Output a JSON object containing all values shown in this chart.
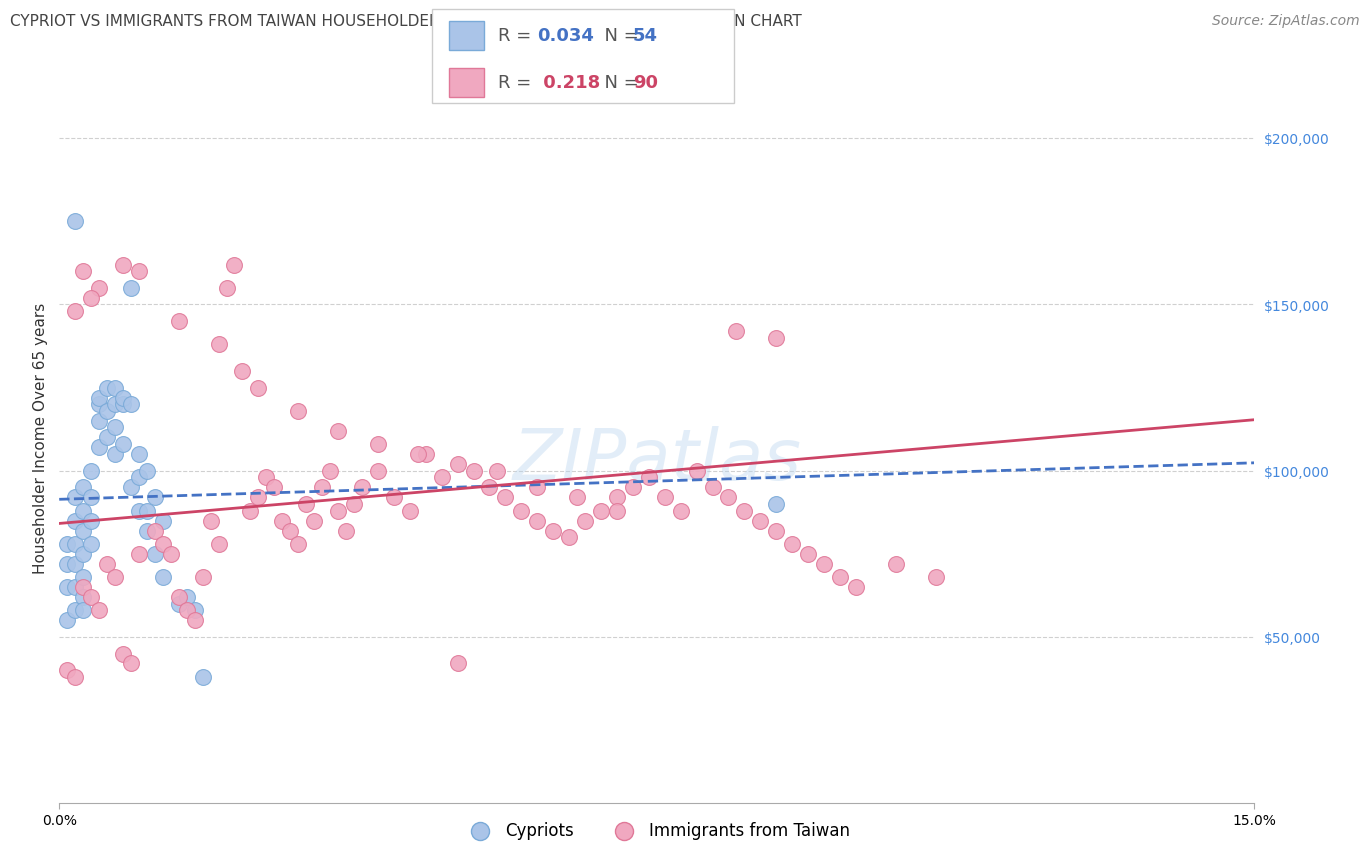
{
  "title": "CYPRIOT VS IMMIGRANTS FROM TAIWAN HOUSEHOLDER INCOME OVER 65 YEARS CORRELATION CHART",
  "source": "Source: ZipAtlas.com",
  "ylabel": "Householder Income Over 65 years",
  "xlim": [
    0.0,
    0.15
  ],
  "ylim": [
    0,
    220000
  ],
  "ytick_labels": [
    "$50,000",
    "$100,000",
    "$150,000",
    "$200,000"
  ],
  "ytick_values": [
    50000,
    100000,
    150000,
    200000
  ],
  "background_color": "#ffffff",
  "grid_color": "#d0d0d0",
  "blue_R": 0.034,
  "blue_N": 54,
  "pink_R": 0.218,
  "pink_N": 90,
  "blue_scatter_x": [
    0.001,
    0.001,
    0.001,
    0.001,
    0.002,
    0.002,
    0.002,
    0.002,
    0.002,
    0.002,
    0.003,
    0.003,
    0.003,
    0.003,
    0.003,
    0.003,
    0.003,
    0.004,
    0.004,
    0.004,
    0.004,
    0.005,
    0.005,
    0.005,
    0.005,
    0.006,
    0.006,
    0.006,
    0.007,
    0.007,
    0.007,
    0.007,
    0.008,
    0.008,
    0.008,
    0.009,
    0.009,
    0.009,
    0.01,
    0.01,
    0.01,
    0.011,
    0.011,
    0.011,
    0.012,
    0.012,
    0.013,
    0.013,
    0.015,
    0.016,
    0.017,
    0.018,
    0.09,
    0.002
  ],
  "blue_scatter_y": [
    65000,
    72000,
    78000,
    55000,
    85000,
    92000,
    78000,
    65000,
    72000,
    58000,
    88000,
    95000,
    82000,
    75000,
    68000,
    62000,
    58000,
    92000,
    100000,
    85000,
    78000,
    107000,
    115000,
    120000,
    122000,
    118000,
    125000,
    110000,
    113000,
    120000,
    125000,
    105000,
    108000,
    120000,
    122000,
    155000,
    120000,
    95000,
    88000,
    105000,
    98000,
    100000,
    88000,
    82000,
    92000,
    75000,
    85000,
    68000,
    60000,
    62000,
    58000,
    38000,
    90000,
    175000
  ],
  "pink_scatter_x": [
    0.001,
    0.002,
    0.003,
    0.004,
    0.005,
    0.006,
    0.007,
    0.008,
    0.009,
    0.01,
    0.012,
    0.013,
    0.014,
    0.015,
    0.016,
    0.017,
    0.018,
    0.019,
    0.02,
    0.021,
    0.022,
    0.023,
    0.024,
    0.025,
    0.026,
    0.027,
    0.028,
    0.029,
    0.03,
    0.031,
    0.032,
    0.033,
    0.034,
    0.035,
    0.036,
    0.037,
    0.038,
    0.04,
    0.042,
    0.044,
    0.046,
    0.048,
    0.05,
    0.052,
    0.054,
    0.056,
    0.058,
    0.06,
    0.062,
    0.064,
    0.066,
    0.068,
    0.07,
    0.072,
    0.074,
    0.076,
    0.078,
    0.08,
    0.082,
    0.084,
    0.086,
    0.088,
    0.09,
    0.092,
    0.094,
    0.096,
    0.098,
    0.1,
    0.105,
    0.11,
    0.003,
    0.005,
    0.008,
    0.01,
    0.015,
    0.02,
    0.025,
    0.03,
    0.035,
    0.04,
    0.045,
    0.05,
    0.055,
    0.06,
    0.065,
    0.07,
    0.085,
    0.09,
    0.002,
    0.004
  ],
  "pink_scatter_y": [
    40000,
    38000,
    65000,
    62000,
    58000,
    72000,
    68000,
    45000,
    42000,
    75000,
    82000,
    78000,
    75000,
    62000,
    58000,
    55000,
    68000,
    85000,
    78000,
    155000,
    162000,
    130000,
    88000,
    92000,
    98000,
    95000,
    85000,
    82000,
    78000,
    90000,
    85000,
    95000,
    100000,
    88000,
    82000,
    90000,
    95000,
    100000,
    92000,
    88000,
    105000,
    98000,
    42000,
    100000,
    95000,
    92000,
    88000,
    85000,
    82000,
    80000,
    85000,
    88000,
    92000,
    95000,
    98000,
    92000,
    88000,
    100000,
    95000,
    92000,
    88000,
    85000,
    82000,
    78000,
    75000,
    72000,
    68000,
    65000,
    72000,
    68000,
    160000,
    155000,
    162000,
    160000,
    145000,
    138000,
    125000,
    118000,
    112000,
    108000,
    105000,
    102000,
    100000,
    95000,
    92000,
    88000,
    142000,
    140000,
    148000,
    152000
  ],
  "blue_line_color": "#4472c4",
  "pink_line_color": "#cc4466",
  "blue_scatter_facecolor": "#aac4e8",
  "blue_scatter_edgecolor": "#7aaad8",
  "pink_scatter_facecolor": "#f0a8c0",
  "pink_scatter_edgecolor": "#e07898",
  "title_fontsize": 11,
  "axis_label_fontsize": 11,
  "tick_fontsize": 10,
  "source_fontsize": 10
}
